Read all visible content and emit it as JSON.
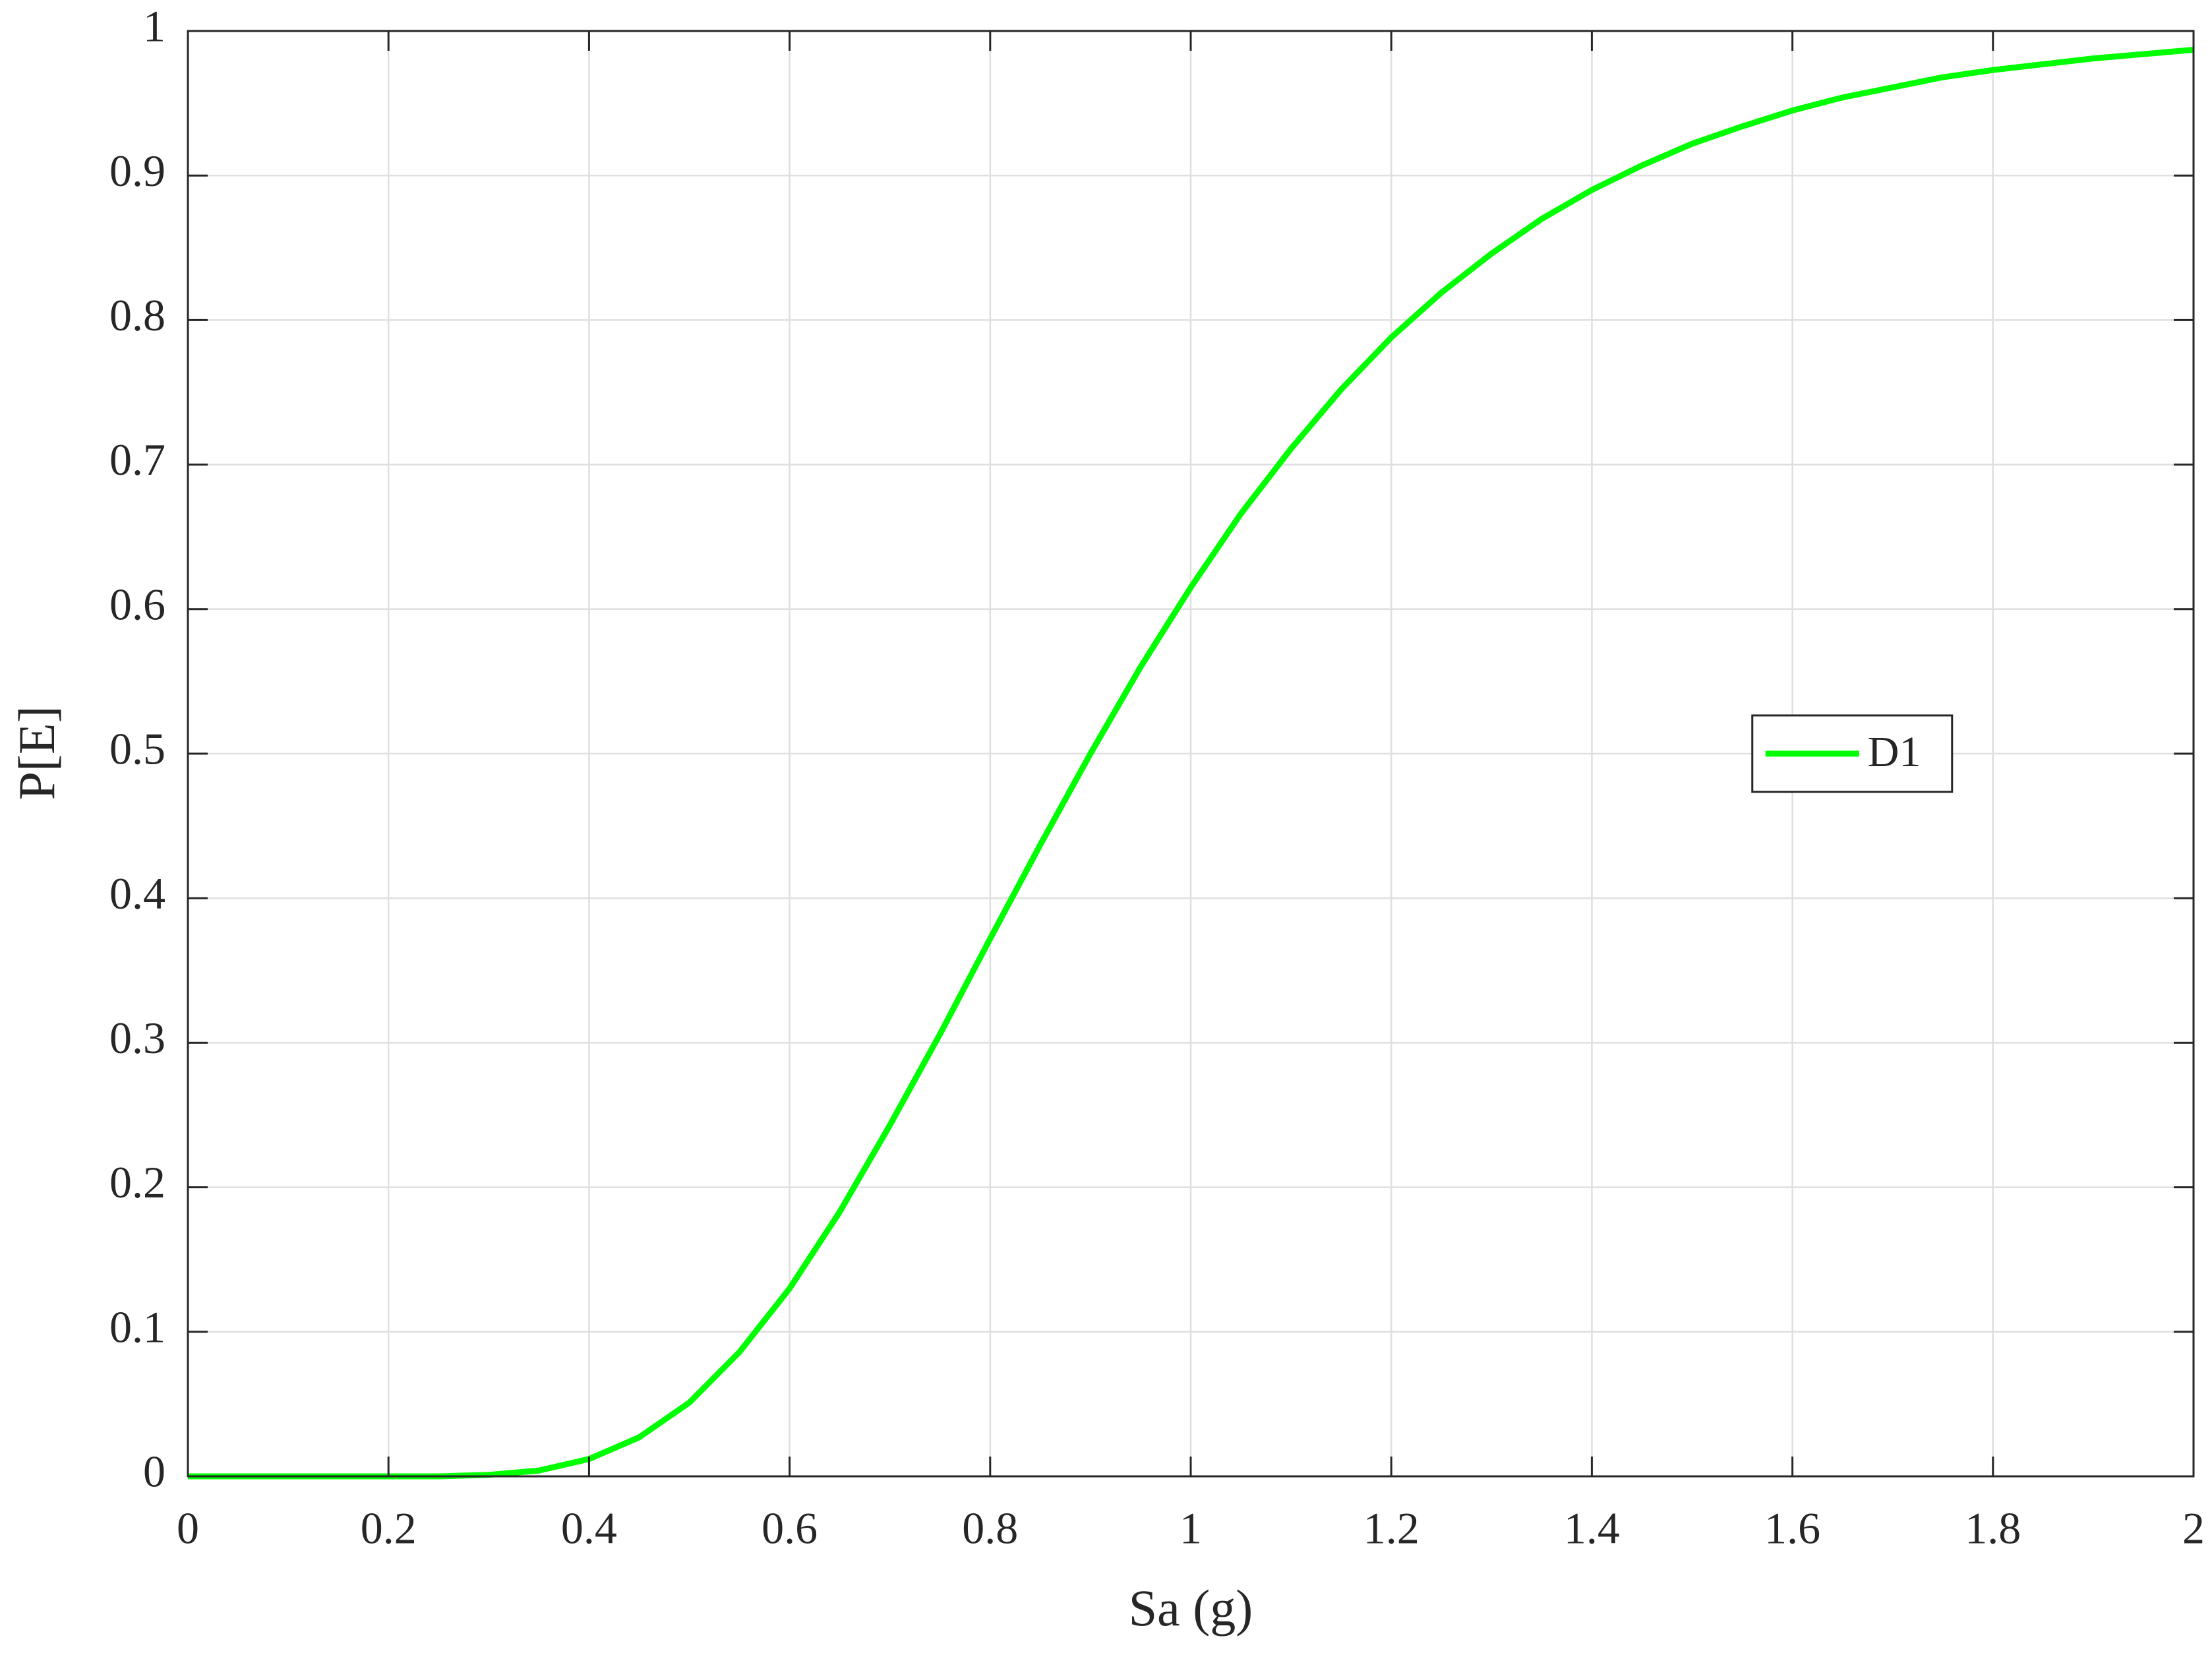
{
  "chart_data": {
    "type": "line",
    "x_label": "Sa (g)",
    "y_label": "P[E]",
    "x": [
      0,
      0.05,
      0.1,
      0.15,
      0.2,
      0.25,
      0.3,
      0.35,
      0.4,
      0.45,
      0.5,
      0.55,
      0.6,
      0.65,
      0.7,
      0.75,
      0.8,
      0.85,
      0.9,
      0.95,
      1.0,
      1.05,
      1.1,
      1.15,
      1.2,
      1.25,
      1.3,
      1.35,
      1.4,
      1.45,
      1.5,
      1.55,
      1.6,
      1.65,
      1.7,
      1.75,
      1.8,
      1.85,
      1.9,
      1.95,
      2.0
    ],
    "series": [
      {
        "name": "D1",
        "color": "#00ff00",
        "values": [
          0,
          0,
          0,
          0,
          0,
          0,
          0.001,
          0.004,
          0.012,
          0.027,
          0.051,
          0.086,
          0.13,
          0.183,
          0.243,
          0.306,
          0.372,
          0.437,
          0.5,
          0.56,
          0.615,
          0.666,
          0.711,
          0.752,
          0.788,
          0.819,
          0.846,
          0.87,
          0.89,
          0.907,
          0.922,
          0.934,
          0.945,
          0.954,
          0.961,
          0.968,
          0.973,
          0.977,
          0.981,
          0.984,
          0.987
        ]
      }
    ],
    "xlim": [
      0,
      2
    ],
    "ylim": [
      0,
      1
    ],
    "xticks": [
      0,
      0.2,
      0.4,
      0.6,
      0.8,
      1,
      1.2,
      1.4,
      1.6,
      1.8,
      2
    ],
    "yticks": [
      0,
      0.1,
      0.2,
      0.3,
      0.4,
      0.5,
      0.6,
      0.7,
      0.8,
      0.9,
      1
    ],
    "grid": true,
    "legend": "east"
  }
}
